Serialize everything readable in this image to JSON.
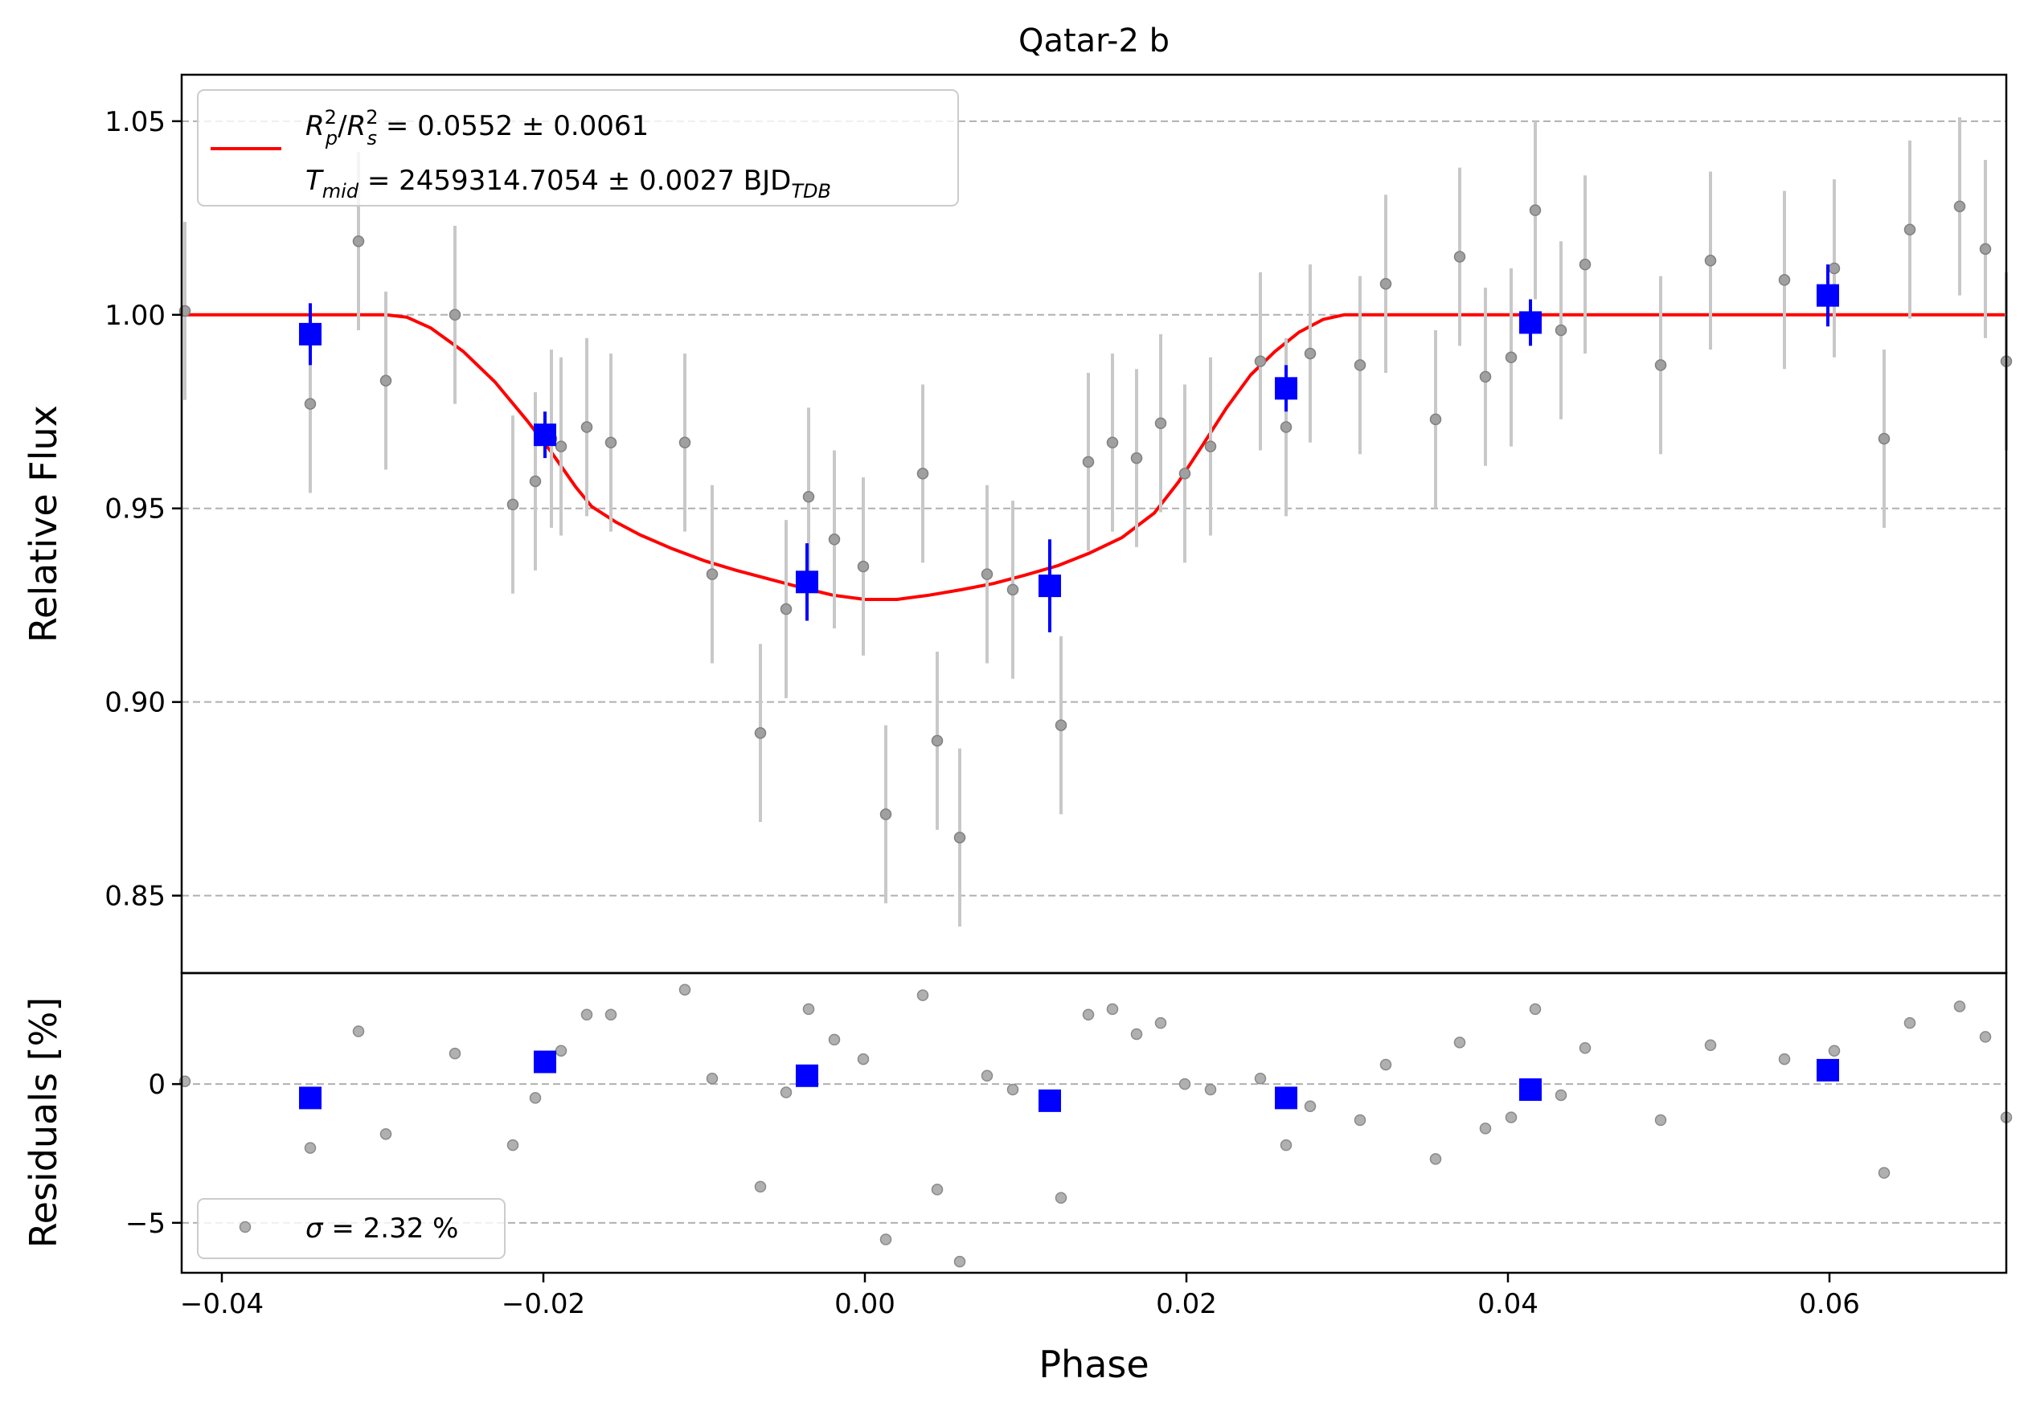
{
  "chart_data": [
    {
      "type": "scatter",
      "title": "Qatar-2 b",
      "xlabel": "",
      "ylabel": "Relative Flux",
      "xlim": [
        -0.0425,
        0.071
      ],
      "ylim": [
        0.83,
        1.062
      ],
      "grid": "horizontal-dashed",
      "legend_placement": "top-left",
      "yticks": [
        {
          "value": 0.85,
          "label": "0.85"
        },
        {
          "value": 0.9,
          "label": "0.90"
        },
        {
          "value": 0.95,
          "label": "0.95"
        },
        {
          "value": 1.0,
          "label": "1.00"
        },
        {
          "value": 1.05,
          "label": "1.05"
        }
      ],
      "legend": {
        "line_color": "#ff0000",
        "entry1": {
          "a": "R",
          "a_sup": "2",
          "a_sub": "p",
          "slash": "/",
          "b": "R",
          "b_sup": "2",
          "b_sub": "s",
          "rest": " = 0.0552 ± 0.0061"
        },
        "entry2": {
          "a": "T",
          "a_sub": "mid",
          "rest": " = 2459314.7054 ± 0.0027 BJD",
          "unit_sub": "TDB"
        }
      },
      "model": {
        "color": "#ff0000",
        "depth": 0.0735,
        "t14": 0.0595,
        "t12": 0.0115,
        "points": [
          [
            -0.0425,
            1.0
          ],
          [
            -0.0298,
            1.0
          ],
          [
            -0.0285,
            0.9994
          ],
          [
            -0.027,
            0.9966
          ],
          [
            -0.025,
            0.9906
          ],
          [
            -0.023,
            0.9826
          ],
          [
            -0.021,
            0.9726
          ],
          [
            -0.0195,
            0.9645
          ],
          [
            -0.018,
            0.9556
          ],
          [
            -0.017,
            0.9505
          ],
          [
            -0.0155,
            0.9465
          ],
          [
            -0.014,
            0.9432
          ],
          [
            -0.012,
            0.9396
          ],
          [
            -0.01,
            0.9365
          ],
          [
            -0.008,
            0.934
          ],
          [
            -0.006,
            0.9318
          ],
          [
            -0.004,
            0.9296
          ],
          [
            -0.002,
            0.9276
          ],
          [
            0.0,
            0.9265
          ],
          [
            0.002,
            0.9265
          ],
          [
            0.004,
            0.9276
          ],
          [
            0.006,
            0.929
          ],
          [
            0.008,
            0.9306
          ],
          [
            0.01,
            0.9328
          ],
          [
            0.012,
            0.9352
          ],
          [
            0.014,
            0.9385
          ],
          [
            0.016,
            0.9425
          ],
          [
            0.018,
            0.9488
          ],
          [
            0.0195,
            0.9568
          ],
          [
            0.021,
            0.9663
          ],
          [
            0.0225,
            0.976
          ],
          [
            0.024,
            0.9845
          ],
          [
            0.0255,
            0.9905
          ],
          [
            0.027,
            0.9955
          ],
          [
            0.0285,
            0.9988
          ],
          [
            0.0298,
            1.0
          ],
          [
            0.071,
            1.0
          ]
        ]
      },
      "raw_points": {
        "color": "#808080",
        "errcolor": "#c8c8c8",
        "points": [
          {
            "x": -0.0423,
            "y": 1.001,
            "e": 0.023
          },
          {
            "x": -0.0345,
            "y": 0.977,
            "e": 0.023
          },
          {
            "x": -0.0315,
            "y": 1.019,
            "e": 0.023
          },
          {
            "x": -0.0298,
            "y": 0.983,
            "e": 0.023
          },
          {
            "x": -0.0255,
            "y": 1.0,
            "e": 0.023
          },
          {
            "x": -0.0219,
            "y": 0.951,
            "e": 0.023
          },
          {
            "x": -0.0205,
            "y": 0.957,
            "e": 0.023
          },
          {
            "x": -0.0195,
            "y": 0.968,
            "e": 0.023
          },
          {
            "x": -0.0189,
            "y": 0.966,
            "e": 0.023
          },
          {
            "x": -0.0173,
            "y": 0.971,
            "e": 0.023
          },
          {
            "x": -0.0158,
            "y": 0.967,
            "e": 0.023
          },
          {
            "x": -0.0112,
            "y": 0.967,
            "e": 0.023
          },
          {
            "x": -0.0095,
            "y": 0.933,
            "e": 0.023
          },
          {
            "x": -0.0065,
            "y": 0.892,
            "e": 0.023
          },
          {
            "x": -0.0049,
            "y": 0.924,
            "e": 0.023
          },
          {
            "x": -0.0035,
            "y": 0.953,
            "e": 0.023
          },
          {
            "x": -0.0019,
            "y": 0.942,
            "e": 0.023
          },
          {
            "x": -0.0001,
            "y": 0.935,
            "e": 0.023
          },
          {
            "x": 0.0013,
            "y": 0.871,
            "e": 0.023
          },
          {
            "x": 0.0036,
            "y": 0.959,
            "e": 0.023
          },
          {
            "x": 0.0045,
            "y": 0.89,
            "e": 0.023
          },
          {
            "x": 0.0059,
            "y": 0.865,
            "e": 0.023
          },
          {
            "x": 0.0076,
            "y": 0.933,
            "e": 0.023
          },
          {
            "x": 0.0092,
            "y": 0.929,
            "e": 0.023
          },
          {
            "x": 0.0122,
            "y": 0.894,
            "e": 0.023
          },
          {
            "x": 0.0139,
            "y": 0.962,
            "e": 0.023
          },
          {
            "x": 0.0154,
            "y": 0.967,
            "e": 0.023
          },
          {
            "x": 0.0169,
            "y": 0.963,
            "e": 0.023
          },
          {
            "x": 0.0184,
            "y": 0.972,
            "e": 0.023
          },
          {
            "x": 0.0199,
            "y": 0.959,
            "e": 0.023
          },
          {
            "x": 0.0215,
            "y": 0.966,
            "e": 0.023
          },
          {
            "x": 0.0246,
            "y": 0.988,
            "e": 0.023
          },
          {
            "x": 0.0262,
            "y": 0.971,
            "e": 0.023
          },
          {
            "x": 0.0277,
            "y": 0.99,
            "e": 0.023
          },
          {
            "x": 0.0308,
            "y": 0.987,
            "e": 0.023
          },
          {
            "x": 0.0324,
            "y": 1.008,
            "e": 0.023
          },
          {
            "x": 0.0355,
            "y": 0.973,
            "e": 0.023
          },
          {
            "x": 0.037,
            "y": 1.015,
            "e": 0.023
          },
          {
            "x": 0.0386,
            "y": 0.984,
            "e": 0.023
          },
          {
            "x": 0.0402,
            "y": 0.989,
            "e": 0.023
          },
          {
            "x": 0.0417,
            "y": 1.027,
            "e": 0.023
          },
          {
            "x": 0.0433,
            "y": 0.996,
            "e": 0.023
          },
          {
            "x": 0.0448,
            "y": 1.013,
            "e": 0.023
          },
          {
            "x": 0.0495,
            "y": 0.987,
            "e": 0.023
          },
          {
            "x": 0.0526,
            "y": 1.014,
            "e": 0.023
          },
          {
            "x": 0.0572,
            "y": 1.009,
            "e": 0.023
          },
          {
            "x": 0.0603,
            "y": 1.012,
            "e": 0.023
          },
          {
            "x": 0.0634,
            "y": 0.968,
            "e": 0.023
          },
          {
            "x": 0.065,
            "y": 1.022,
            "e": 0.023
          },
          {
            "x": 0.0681,
            "y": 1.028,
            "e": 0.023
          },
          {
            "x": 0.0697,
            "y": 1.017,
            "e": 0.023
          },
          {
            "x": 0.071,
            "y": 0.988,
            "e": 0.023
          }
        ]
      },
      "binned_points": {
        "color": "#0000ff",
        "points": [
          {
            "x": -0.0345,
            "y": 0.995,
            "e": 0.008
          },
          {
            "x": -0.0199,
            "y": 0.969,
            "e": 0.006
          },
          {
            "x": -0.0036,
            "y": 0.931,
            "e": 0.01
          },
          {
            "x": 0.0115,
            "y": 0.93,
            "e": 0.012
          },
          {
            "x": 0.0262,
            "y": 0.981,
            "e": 0.006
          },
          {
            "x": 0.0414,
            "y": 0.998,
            "e": 0.006
          },
          {
            "x": 0.0599,
            "y": 1.005,
            "e": 0.008
          }
        ]
      }
    },
    {
      "type": "scatter",
      "title": "",
      "xlabel": "Phase",
      "ylabel": "Residuals [%]",
      "xlim": [
        -0.0425,
        0.071
      ],
      "ylim": [
        -6.8,
        4.0
      ],
      "grid": "horizontal-dashed",
      "legend_placement": "bottom-left",
      "xticks": [
        {
          "value": -0.04,
          "label": "−0.04"
        },
        {
          "value": -0.02,
          "label": "−0.02"
        },
        {
          "value": 0.0,
          "label": "0.00"
        },
        {
          "value": 0.02,
          "label": "0.02"
        },
        {
          "value": 0.04,
          "label": "0.04"
        },
        {
          "value": 0.06,
          "label": "0.06"
        }
      ],
      "yticks": [
        {
          "value": -5,
          "label": "−5"
        },
        {
          "value": 0,
          "label": "0"
        }
      ],
      "legend": {
        "sigma_symbol": "σ",
        "sigma_rest": " = 2.32 %"
      },
      "raw_points": {
        "color": "#999999",
        "points": [
          {
            "x": -0.0423,
            "y": 0.1
          },
          {
            "x": -0.0345,
            "y": -2.3
          },
          {
            "x": -0.0315,
            "y": 1.9
          },
          {
            "x": -0.0298,
            "y": -1.8
          },
          {
            "x": -0.0255,
            "y": 1.1
          },
          {
            "x": -0.0219,
            "y": -2.2
          },
          {
            "x": -0.0205,
            "y": -0.5
          },
          {
            "x": -0.0189,
            "y": 1.2
          },
          {
            "x": -0.0173,
            "y": 2.5
          },
          {
            "x": -0.0158,
            "y": 2.5
          },
          {
            "x": -0.0112,
            "y": 3.4
          },
          {
            "x": -0.0095,
            "y": 0.2
          },
          {
            "x": -0.0065,
            "y": -3.7
          },
          {
            "x": -0.0049,
            "y": -0.3
          },
          {
            "x": -0.0035,
            "y": 2.7
          },
          {
            "x": -0.0019,
            "y": 1.6
          },
          {
            "x": -0.0001,
            "y": 0.9
          },
          {
            "x": 0.0013,
            "y": -5.6
          },
          {
            "x": 0.0036,
            "y": 3.2
          },
          {
            "x": 0.0045,
            "y": -3.8
          },
          {
            "x": 0.0059,
            "y": -6.4
          },
          {
            "x": 0.0076,
            "y": 0.3
          },
          {
            "x": 0.0092,
            "y": -0.2
          },
          {
            "x": 0.0122,
            "y": -4.1
          },
          {
            "x": 0.0139,
            "y": 2.5
          },
          {
            "x": 0.0154,
            "y": 2.7
          },
          {
            "x": 0.0169,
            "y": 1.8
          },
          {
            "x": 0.0184,
            "y": 2.2
          },
          {
            "x": 0.0199,
            "y": 0.0
          },
          {
            "x": 0.0215,
            "y": -0.2
          },
          {
            "x": 0.0246,
            "y": 0.2
          },
          {
            "x": 0.0262,
            "y": -2.2
          },
          {
            "x": 0.0277,
            "y": -0.8
          },
          {
            "x": 0.0308,
            "y": -1.3
          },
          {
            "x": 0.0324,
            "y": 0.7
          },
          {
            "x": 0.0355,
            "y": -2.7
          },
          {
            "x": 0.037,
            "y": 1.5
          },
          {
            "x": 0.0386,
            "y": -1.6
          },
          {
            "x": 0.0402,
            "y": -1.2
          },
          {
            "x": 0.0417,
            "y": 2.7
          },
          {
            "x": 0.0433,
            "y": -0.4
          },
          {
            "x": 0.0448,
            "y": 1.3
          },
          {
            "x": 0.0495,
            "y": -1.3
          },
          {
            "x": 0.0526,
            "y": 1.4
          },
          {
            "x": 0.0572,
            "y": 0.9
          },
          {
            "x": 0.0603,
            "y": 1.2
          },
          {
            "x": 0.0634,
            "y": -3.2
          },
          {
            "x": 0.065,
            "y": 2.2
          },
          {
            "x": 0.0681,
            "y": 2.8
          },
          {
            "x": 0.0697,
            "y": 1.7
          },
          {
            "x": 0.071,
            "y": -1.2
          }
        ]
      },
      "binned_points": {
        "color": "#0000ff",
        "points": [
          {
            "x": -0.0345,
            "y": -0.5
          },
          {
            "x": -0.0199,
            "y": 0.8
          },
          {
            "x": -0.0036,
            "y": 0.3
          },
          {
            "x": 0.0115,
            "y": -0.6
          },
          {
            "x": 0.0262,
            "y": -0.5
          },
          {
            "x": 0.0414,
            "y": -0.2
          },
          {
            "x": 0.0599,
            "y": 0.5
          }
        ]
      }
    }
  ]
}
